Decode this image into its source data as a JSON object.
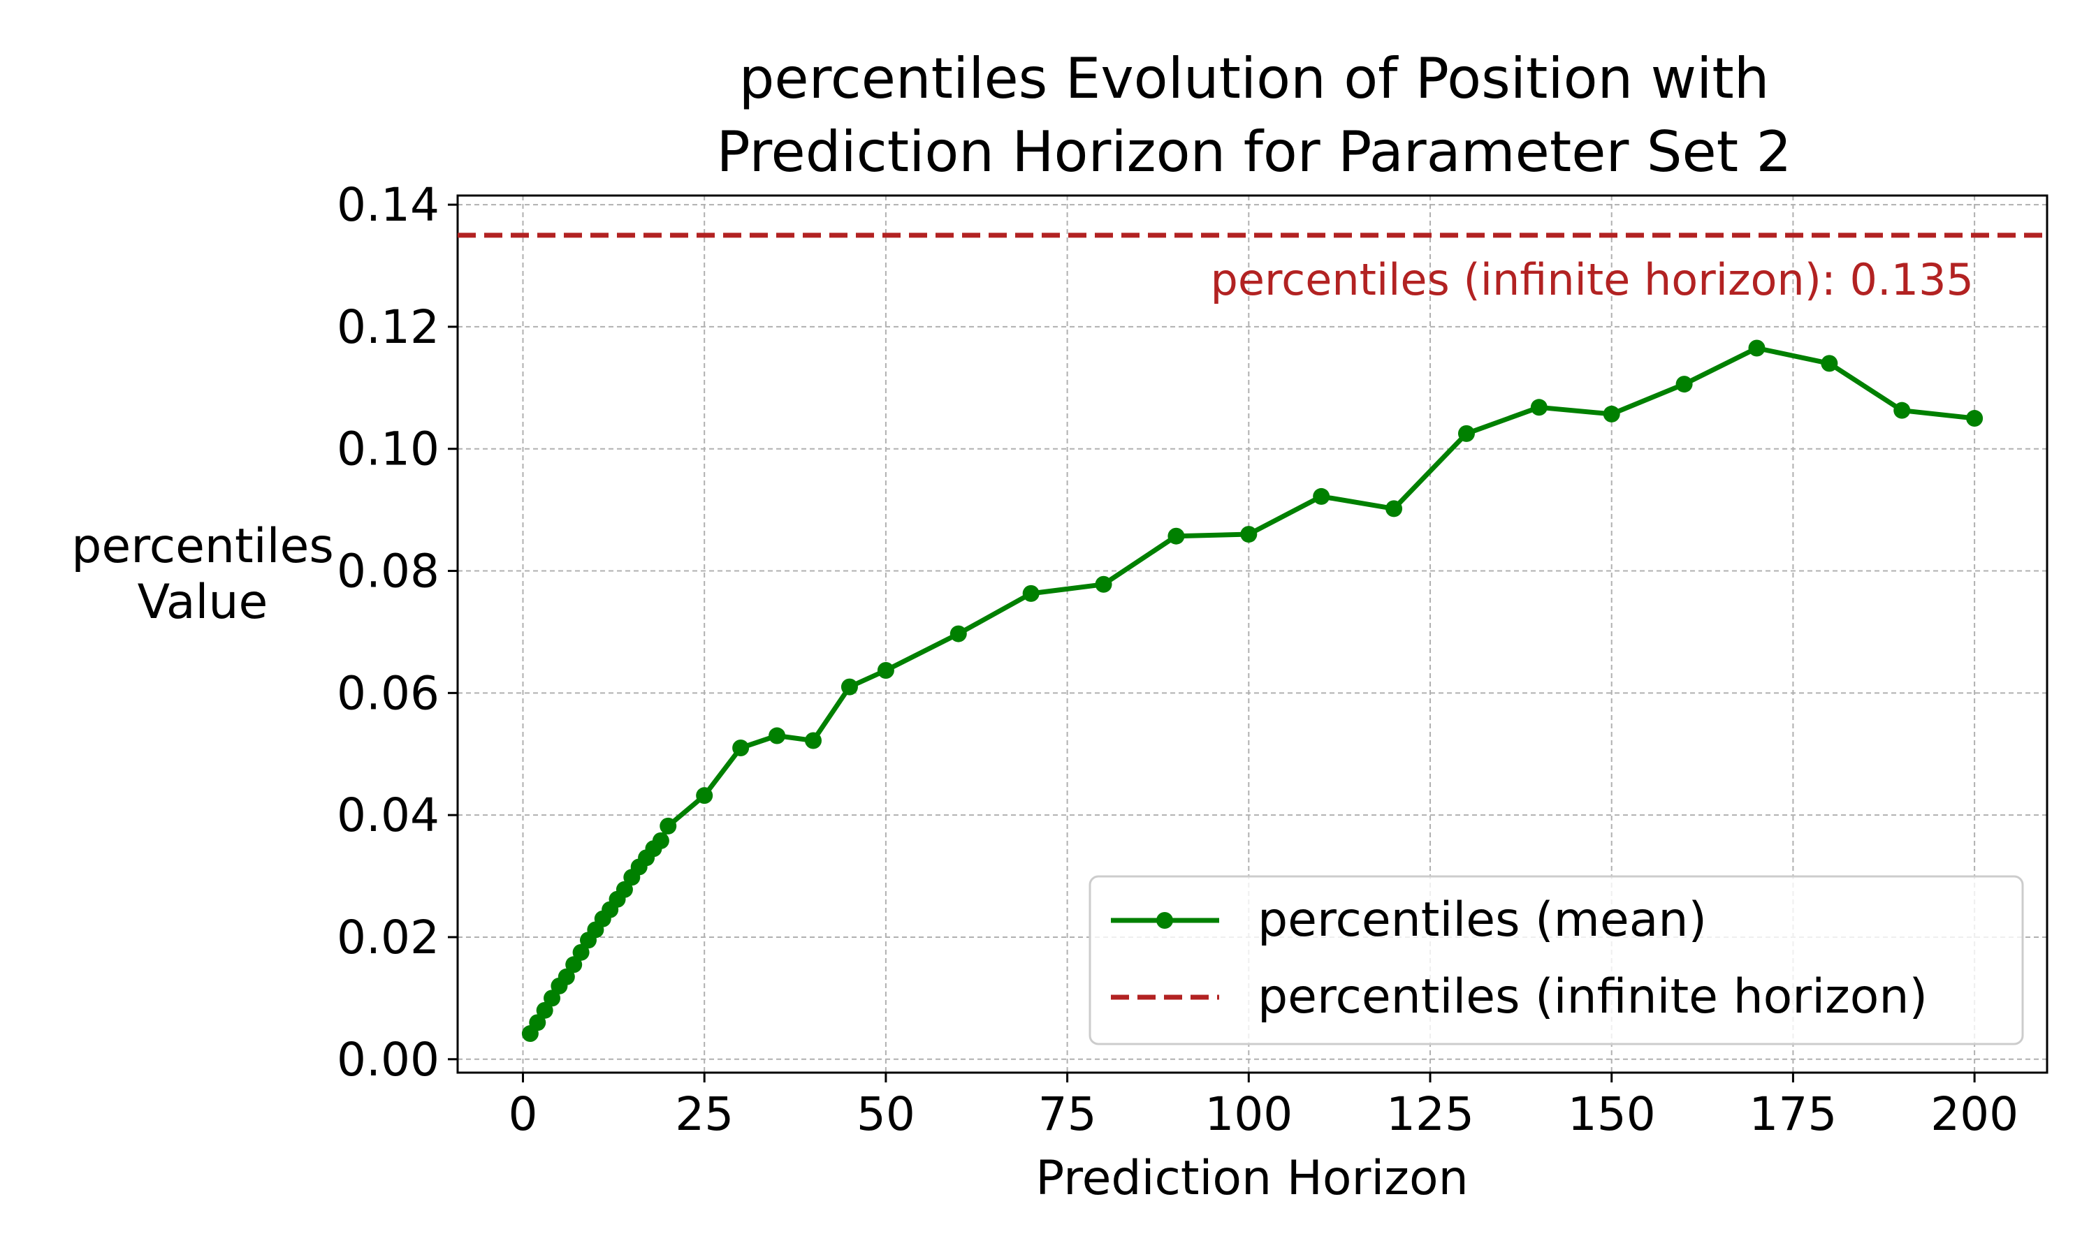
{
  "chart_data": {
    "type": "line",
    "title_lines": [
      "percentiles Evolution of Position with",
      "Prediction Horizon for Parameter Set 2"
    ],
    "xlabel": "Prediction Horizon",
    "ylabel_lines": [
      "percentiles",
      "Value"
    ],
    "xlim": [
      -9,
      210
    ],
    "ylim": [
      -0.0022,
      0.1415
    ],
    "xticks": [
      0,
      25,
      50,
      75,
      100,
      125,
      150,
      175,
      200
    ],
    "xtick_labels": [
      "0",
      "25",
      "50",
      "75",
      "100",
      "125",
      "150",
      "175",
      "200"
    ],
    "yticks": [
      0.0,
      0.02,
      0.04,
      0.06,
      0.08,
      0.1,
      0.12,
      0.14
    ],
    "ytick_labels": [
      "0.00",
      "0.02",
      "0.04",
      "0.06",
      "0.08",
      "0.10",
      "0.12",
      "0.14"
    ],
    "grid": true,
    "legend_placement": "lower-right",
    "series": [
      {
        "name": "percentiles (mean)",
        "color": "#008000",
        "marker": "circle",
        "line_style": "solid",
        "x": [
          1,
          2,
          3,
          4,
          5,
          6,
          7,
          8,
          9,
          10,
          11,
          12,
          13,
          14,
          15,
          16,
          17,
          18,
          19,
          20,
          25,
          30,
          35,
          40,
          45,
          50,
          60,
          70,
          80,
          90,
          100,
          110,
          120,
          130,
          140,
          150,
          160,
          170,
          180,
          190,
          200
        ],
        "y": [
          0.0042,
          0.006,
          0.008,
          0.01,
          0.012,
          0.0135,
          0.0155,
          0.0175,
          0.0195,
          0.0212,
          0.023,
          0.0245,
          0.0262,
          0.0278,
          0.0298,
          0.0315,
          0.033,
          0.0345,
          0.0358,
          0.0382,
          0.0432,
          0.051,
          0.053,
          0.0522,
          0.061,
          0.0637,
          0.0697,
          0.0763,
          0.0778,
          0.0857,
          0.086,
          0.0922,
          0.0902,
          0.1025,
          0.1068,
          0.1057,
          0.1106,
          0.1165,
          0.114,
          0.1063,
          0.105
        ]
      },
      {
        "name": "percentiles (infinite horizon)",
        "color": "#b22222",
        "line_style": "dashed",
        "y_constant": 0.135
      }
    ],
    "annotation": {
      "text": "percentiles (infinite horizon): 0.135",
      "x": 200,
      "y": 0.135,
      "color": "#b22222"
    }
  }
}
